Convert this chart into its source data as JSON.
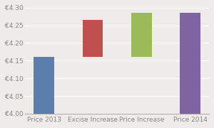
{
  "categories": [
    "Price 2013",
    "Excise Increase",
    "Price Increase",
    "Price 2014"
  ],
  "bar_bottoms": [
    4.0,
    4.16,
    4.16,
    4.0
  ],
  "bar_tops": [
    4.16,
    4.265,
    4.285,
    4.285
  ],
  "bar_colors": [
    "#5b7fad",
    "#c0504d",
    "#9bbb59",
    "#8064a2"
  ],
  "ylim": [
    4.0,
    4.305
  ],
  "yticks": [
    4.0,
    4.05,
    4.1,
    4.15,
    4.2,
    4.25,
    4.3
  ],
  "ytick_labels": [
    "€4.00",
    "€4.05",
    "€4.10",
    "€4.15",
    "€4.20",
    "€4.25",
    "€4.30"
  ],
  "background_color": "#eeecea",
  "plot_bg_color": "#eeecea",
  "tick_fontsize": 6.5,
  "label_fontsize": 6.5,
  "bar_width": 0.42,
  "gridcolor": "#ffffff",
  "spine_color": "#b0aeaa",
  "tick_color": "#888880"
}
